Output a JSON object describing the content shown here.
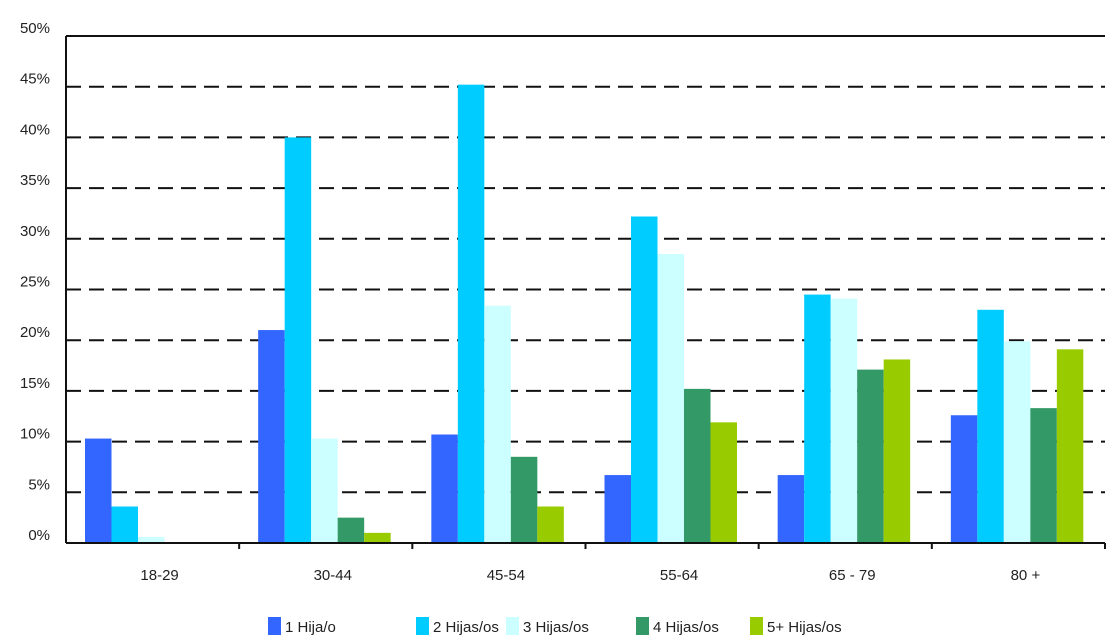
{
  "chart_data": {
    "type": "bar",
    "categories": [
      "18-29",
      "30-44",
      "45-54",
      "55-64",
      "65 - 79",
      "80 +"
    ],
    "series": [
      {
        "name": "1 Hija/o",
        "color": "#3366ff",
        "values": [
          10.3,
          21.0,
          10.7,
          6.7,
          6.7,
          12.6
        ]
      },
      {
        "name": "2 Hijas/os",
        "color": "#00ccff",
        "values": [
          3.6,
          40.0,
          45.2,
          32.2,
          24.5,
          23.0
        ]
      },
      {
        "name": "3 Hijas/os",
        "color": "#ccffff",
        "values": [
          0.6,
          10.3,
          23.4,
          28.5,
          24.1,
          19.9
        ]
      },
      {
        "name": "4 Hijas/os",
        "color": "#339966",
        "values": [
          0,
          2.5,
          8.5,
          15.2,
          17.1,
          13.3
        ]
      },
      {
        "name": "5+ Hijas/os",
        "color": "#99cc00",
        "values": [
          0,
          1.0,
          3.6,
          11.9,
          18.1,
          19.1
        ]
      }
    ],
    "ylim": [
      0,
      50
    ],
    "yticks": [
      "0%",
      "5%",
      "10%",
      "15%",
      "20%",
      "25%",
      "30%",
      "35%",
      "40%",
      "45%",
      "50%"
    ],
    "grid": "dashed horizontal",
    "legend": "bottom"
  }
}
